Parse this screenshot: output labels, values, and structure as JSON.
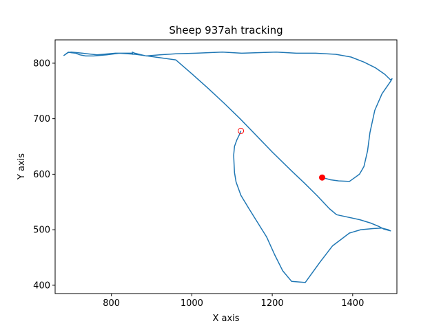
{
  "chart_data": {
    "type": "line",
    "title": "Sheep 937ah tracking",
    "xlabel": "X axis",
    "ylabel": "Y axis",
    "xlim": [
      660,
      1510
    ],
    "ylim": [
      385,
      842
    ],
    "xticks": [
      800,
      1000,
      1200,
      1400
    ],
    "yticks": [
      400,
      500,
      600,
      700,
      800
    ],
    "grid": false,
    "line_color": "#1f77b4",
    "marker_color": "#ff0000",
    "series": [
      {
        "name": "",
        "x": [
          1122,
          1118,
          1112,
          1106,
          1104,
          1105,
          1106,
          1110,
          1122,
          1142,
          1186,
          1206,
          1226,
          1248,
          1282,
          1318,
          1350,
          1392,
          1420,
          1450,
          1472,
          1488,
          1494,
          1478,
          1465,
          1445,
          1418,
          1360,
          1342,
          1312,
          1280,
          1248,
          1200,
          1160,
          1120,
          1080,
          1040,
          1000,
          960,
          900,
          860,
          820,
          788,
          756,
          736,
          722,
          711,
          700,
          693,
          690,
          682,
          691,
          700,
          728,
          764,
          810,
          850,
          853,
          852,
          858,
          886,
          920,
          960,
          1010,
          1076,
          1124,
          1210,
          1260,
          1308,
          1358,
          1396,
          1428,
          1456,
          1480,
          1494,
          1498,
          1495,
          1473,
          1455,
          1443,
          1437,
          1428,
          1417,
          1392,
          1365,
          1345,
          1324
        ],
        "y": [
          678,
          671,
          662,
          650,
          634,
          618,
          603,
          586,
          562,
          538,
          487,
          455,
          426,
          407,
          405,
          441,
          471,
          494,
          500,
          502,
          503,
          500,
          498,
          501,
          506,
          512,
          518,
          527,
          538,
          561,
          584,
          606,
          640,
          670,
          700,
          728,
          755,
          781,
          806,
          812,
          816,
          818,
          815,
          813,
          813,
          815,
          818,
          819,
          820,
          818,
          814,
          819,
          820,
          818,
          815,
          818,
          818,
          816,
          820,
          818,
          813,
          815,
          817,
          818,
          820,
          818,
          820,
          818,
          818,
          816,
          811,
          802,
          792,
          780,
          770,
          772,
          768,
          745,
          715,
          675,
          642,
          614,
          600,
          587,
          588,
          590,
          594
        ]
      }
    ],
    "markers": [
      {
        "name": "start",
        "x": 1122,
        "y": 678,
        "style": "hollow-circle"
      },
      {
        "name": "end",
        "x": 1324,
        "y": 594,
        "style": "filled-circle"
      }
    ]
  }
}
